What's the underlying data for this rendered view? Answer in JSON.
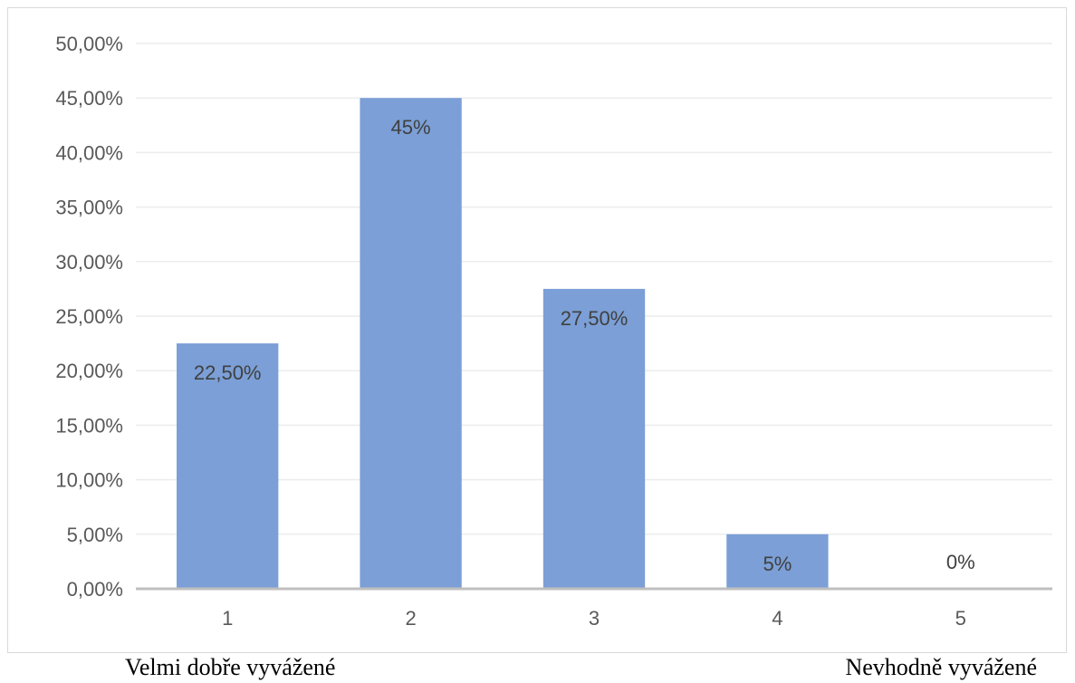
{
  "chart_data": {
    "type": "bar",
    "title": "",
    "xlabel": "",
    "ylabel": "",
    "categories": [
      "1",
      "2",
      "3",
      "4",
      "5"
    ],
    "values": [
      22.5,
      45,
      27.5,
      5,
      0
    ],
    "data_labels": [
      "22,50%",
      "45%",
      "27,50%",
      "5%",
      "0%"
    ],
    "ylim": [
      0,
      50
    ],
    "yticks": [
      0,
      5,
      10,
      15,
      20,
      25,
      30,
      35,
      40,
      45,
      50
    ],
    "ytick_labels": [
      "0,00%",
      "5,00%",
      "10,00%",
      "15,00%",
      "20,00%",
      "25,00%",
      "30,00%",
      "35,00%",
      "40,00%",
      "45,00%",
      "50,00%"
    ],
    "grid": true,
    "bar_color": "#7b9fd6",
    "axis_color": "#bfbfbf",
    "grid_color": "#ececec"
  },
  "captions": {
    "left": "Velmi dobře vyvážené",
    "right": "Nevhodně vyvážené"
  }
}
